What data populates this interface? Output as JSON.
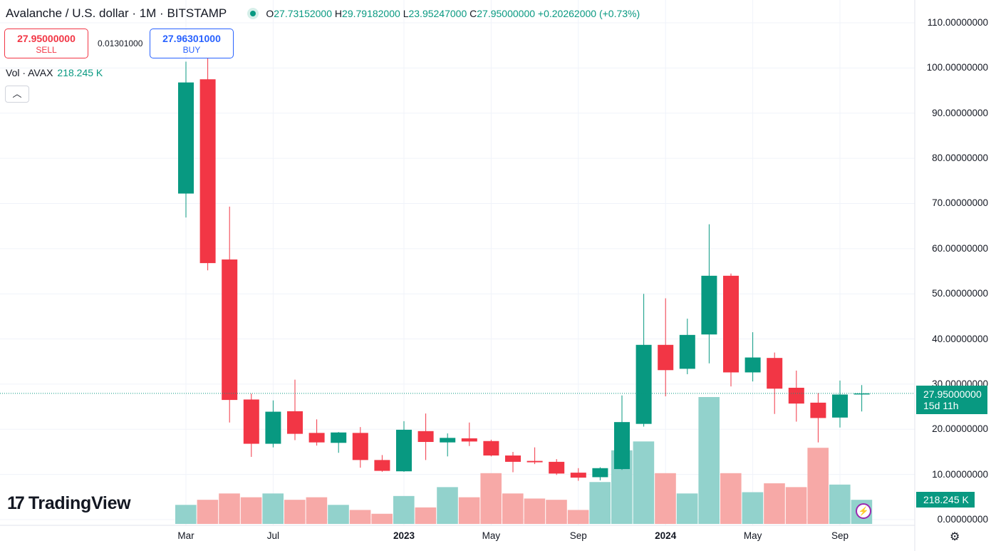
{
  "header": {
    "pair": "Avalanche / U.S. dollar · 1M · BITSTAMP",
    "open_label": "O",
    "open": "27.73152000",
    "high_label": "H",
    "high": "29.79182000",
    "low_label": "L",
    "low": "23.95247000",
    "close_label": "C",
    "close": "27.95000000",
    "change": "+0.20262000 (+0.73%)"
  },
  "trade": {
    "sell_price": "27.95000000",
    "sell_label": "SELL",
    "spread": "0.01301000",
    "buy_price": "27.96301000",
    "buy_label": "BUY"
  },
  "volume_legend": {
    "label": "Vol · AVAX",
    "value": "218.245 K"
  },
  "logo_text": "TradingView",
  "price_tag": {
    "price": "27.95000000",
    "countdown": "15d 11h"
  },
  "volume_tag": "218.245 K",
  "y_tick_labels": [
    "110.00000000",
    "100.00000000",
    "90.00000000",
    "80.00000000",
    "70.00000000",
    "60.00000000",
    "50.00000000",
    "40.00000000",
    "30.00000000",
    "20.00000000",
    "10.00000000",
    "0.00000000"
  ],
  "x_tick_labels": [
    {
      "text": "Mar",
      "bold": false
    },
    {
      "text": "Jul",
      "bold": false
    },
    {
      "text": "2023",
      "bold": true
    },
    {
      "text": "May",
      "bold": false
    },
    {
      "text": "Sep",
      "bold": false
    },
    {
      "text": "2024",
      "bold": true
    },
    {
      "text": "May",
      "bold": false
    },
    {
      "text": "Sep",
      "bold": false
    }
  ],
  "colors": {
    "up": "#089981",
    "down": "#f23645",
    "vol_up": "#92d2cc",
    "vol_down": "#f7a9a7",
    "grid": "#f0f3fa"
  },
  "chart_data": {
    "type": "candlestick",
    "title": "Avalanche / U.S. dollar · 1M · BITSTAMP",
    "ylim": [
      0,
      110
    ],
    "x_ticks": [
      "Mar",
      "Jul",
      "2023",
      "May",
      "Sep",
      "2024",
      "May",
      "Sep"
    ],
    "grid": true,
    "candles": [
      {
        "date": "2022-02",
        "o": 72.2,
        "h": 101.4,
        "l": 66.9,
        "c": 96.8
      },
      {
        "date": "2022-03",
        "o": 97.5,
        "h": 102.2,
        "l": 55.2,
        "c": 56.8
      },
      {
        "date": "2022-04",
        "o": 57.6,
        "h": 69.3,
        "l": 21.5,
        "c": 26.5
      },
      {
        "date": "2022-05",
        "o": 26.6,
        "h": 27.9,
        "l": 13.9,
        "c": 16.8
      },
      {
        "date": "2022-06",
        "o": 16.8,
        "h": 26.4,
        "l": 16.0,
        "c": 23.9
      },
      {
        "date": "2022-07",
        "o": 24.0,
        "h": 31.0,
        "l": 17.6,
        "c": 19.0
      },
      {
        "date": "2022-08",
        "o": 19.2,
        "h": 22.2,
        "l": 16.4,
        "c": 17.1
      },
      {
        "date": "2022-09",
        "o": 17.0,
        "h": 19.4,
        "l": 14.8,
        "c": 19.3
      },
      {
        "date": "2022-10",
        "o": 19.2,
        "h": 20.5,
        "l": 11.5,
        "c": 13.2
      },
      {
        "date": "2022-11",
        "o": 13.2,
        "h": 14.3,
        "l": 10.6,
        "c": 10.8
      },
      {
        "date": "2022-12",
        "o": 10.7,
        "h": 21.8,
        "l": 10.6,
        "c": 19.9
      },
      {
        "date": "2023-01",
        "o": 19.6,
        "h": 23.5,
        "l": 13.2,
        "c": 17.2
      },
      {
        "date": "2023-02",
        "o": 17.1,
        "h": 19.1,
        "l": 14.0,
        "c": 18.1
      },
      {
        "date": "2023-03",
        "o": 18.0,
        "h": 21.5,
        "l": 16.3,
        "c": 17.3
      },
      {
        "date": "2023-04",
        "o": 17.4,
        "h": 17.7,
        "l": 14.0,
        "c": 14.2
      },
      {
        "date": "2023-05",
        "o": 14.2,
        "h": 15.0,
        "l": 10.5,
        "c": 12.8
      },
      {
        "date": "2023-06",
        "o": 13.0,
        "h": 16.0,
        "l": 12.3,
        "c": 12.7
      },
      {
        "date": "2023-07",
        "o": 12.8,
        "h": 13.4,
        "l": 9.9,
        "c": 10.2
      },
      {
        "date": "2023-08",
        "o": 10.4,
        "h": 11.4,
        "l": 8.6,
        "c": 9.3
      },
      {
        "date": "2023-09",
        "o": 9.4,
        "h": 11.6,
        "l": 8.7,
        "c": 11.4
      },
      {
        "date": "2023-10",
        "o": 11.2,
        "h": 27.5,
        "l": 11.0,
        "c": 21.6
      },
      {
        "date": "2023-11",
        "o": 21.2,
        "h": 50.0,
        "l": 20.6,
        "c": 38.7
      },
      {
        "date": "2023-12",
        "o": 38.7,
        "h": 49.0,
        "l": 27.3,
        "c": 33.1
      },
      {
        "date": "2024-01",
        "o": 33.4,
        "h": 44.5,
        "l": 32.2,
        "c": 40.9
      },
      {
        "date": "2024-02",
        "o": 41.0,
        "h": 65.4,
        "l": 34.6,
        "c": 54.0
      },
      {
        "date": "2024-03",
        "o": 54.0,
        "h": 54.5,
        "l": 29.5,
        "c": 32.6
      },
      {
        "date": "2024-04",
        "o": 32.6,
        "h": 41.5,
        "l": 30.6,
        "c": 35.9
      },
      {
        "date": "2024-05",
        "o": 35.8,
        "h": 37.0,
        "l": 23.4,
        "c": 29.0
      },
      {
        "date": "2024-06",
        "o": 29.2,
        "h": 33.0,
        "l": 21.7,
        "c": 25.7
      },
      {
        "date": "2024-07",
        "o": 25.9,
        "h": 28.0,
        "l": 17.1,
        "c": 22.5
      },
      {
        "date": "2024-08",
        "o": 22.6,
        "h": 30.8,
        "l": 20.4,
        "c": 27.7
      },
      {
        "date": "2024-09",
        "o": 27.73152,
        "h": 29.79182,
        "l": 23.95247,
        "c": 27.95
      }
    ],
    "volume_rel": [
      0.15,
      0.19,
      0.24,
      0.21,
      0.24,
      0.19,
      0.21,
      0.15,
      0.11,
      0.08,
      0.22,
      0.13,
      0.29,
      0.21,
      0.4,
      0.24,
      0.2,
      0.19,
      0.11,
      0.33,
      0.58,
      0.65,
      0.4,
      0.24,
      1.0,
      0.4,
      0.25,
      0.32,
      0.29,
      0.6,
      0.31,
      0.19
    ]
  }
}
